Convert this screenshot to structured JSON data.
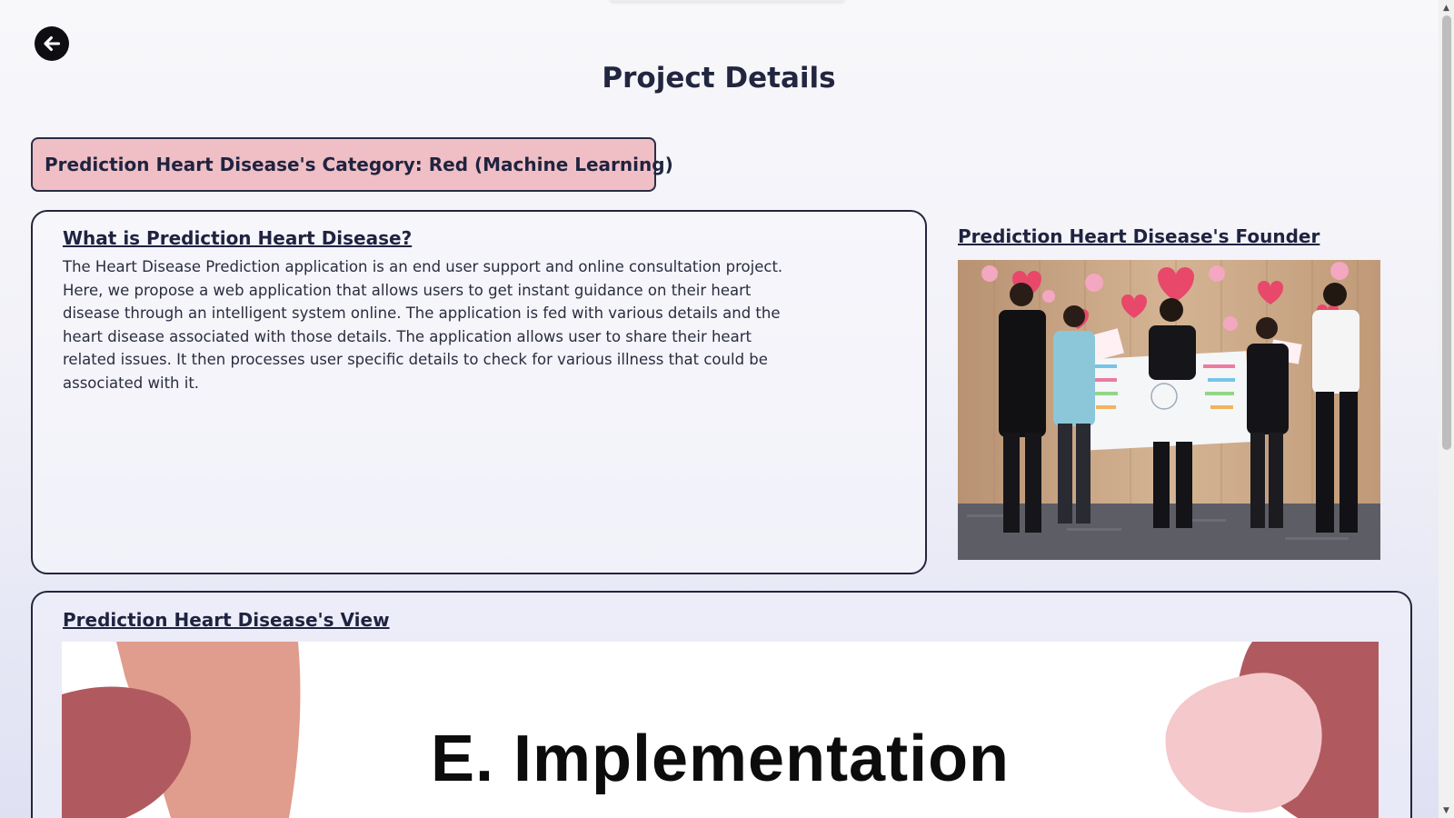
{
  "page": {
    "title": "Project Details"
  },
  "nav": {
    "back_icon": "arrow-left-icon"
  },
  "category": {
    "label": "Prediction Heart Disease's Category: Red (Machine Learning)",
    "color": "#efbfc5"
  },
  "about": {
    "heading": "What is Prediction Heart Disease?",
    "description": "The Heart Disease Prediction application is an end user support and online consultation project. Here, we propose a web application that allows users to get instant guidance on their heart disease through an intelligent system online. The application is fed with various details and the heart disease associated with those details. The application allows user to share their heart related issues. It then processes user specific details to check for various illness that could be associated with it."
  },
  "founder": {
    "heading": "Prediction Heart Disease's Founder"
  },
  "view": {
    "heading": "Prediction Heart Disease's View",
    "slide_title": "E. Implementation"
  },
  "colors": {
    "text_dark": "#1f2340",
    "slide_maroon": "#b05a5f",
    "slide_salmon": "#e09c8c",
    "slide_pink": "#f5c8cc"
  }
}
